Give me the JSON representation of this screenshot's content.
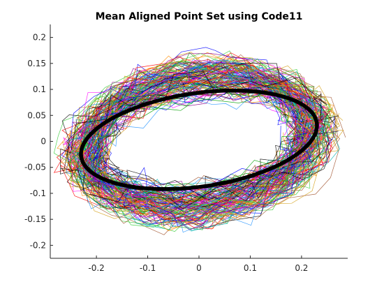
{
  "chart_data": {
    "type": "line",
    "title": "Mean Aligned Point Set using Code11",
    "xlabel": "",
    "ylabel": "",
    "xlim": [
      -0.29,
      0.29
    ],
    "ylim": [
      -0.225,
      0.225
    ],
    "xticks": [
      -0.2,
      -0.1,
      0,
      0.1,
      0.2
    ],
    "xtick_labels": [
      "-0.2",
      "-0.1",
      "0",
      "0.1",
      "0.2"
    ],
    "yticks": [
      0.2,
      0.15,
      0.1,
      0.05,
      0,
      -0.05,
      -0.1,
      -0.15,
      -0.2
    ],
    "ytick_labels": [
      "0.2",
      "0.15",
      "0.1",
      "0.05",
      "0",
      "-0.05",
      "-0.1",
      "-0.15",
      "-0.2"
    ],
    "grid": false,
    "legend": "none",
    "mean_shape": {
      "color": "#000000",
      "description_points": [
        [
          -0.23,
          -0.03
        ],
        [
          -0.2,
          0.03
        ],
        [
          -0.12,
          0.075
        ],
        [
          0.0,
          0.095
        ],
        [
          0.08,
          0.095
        ],
        [
          0.2,
          0.065
        ],
        [
          0.23,
          0.02
        ],
        [
          0.2,
          -0.03
        ],
        [
          0.1,
          -0.065
        ],
        [
          0.0,
          -0.09
        ],
        [
          -0.1,
          -0.085
        ],
        [
          -0.2,
          -0.065
        ],
        [
          -0.23,
          -0.03
        ]
      ]
    },
    "aligned_sets": {
      "count": 140,
      "colors": [
        "#ff00ff",
        "#00b0b0",
        "#ff0000",
        "#0000ff",
        "#00a000",
        "#ff8c00",
        "#8b008b",
        "#000000",
        "#a0522d",
        "#d4a017",
        "#1e90ff",
        "#32cd32"
      ]
    }
  }
}
